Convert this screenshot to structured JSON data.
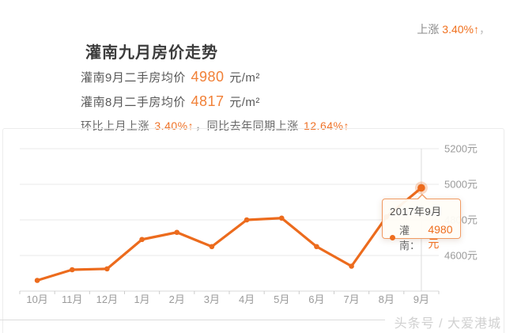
{
  "colors": {
    "accent_line": "#ec6b1d",
    "accent_text": "#f18037",
    "grid": "#e9e9e9",
    "axis": "#d8d8d8",
    "axis_label": "#9b9b9b"
  },
  "top_note": {
    "label": "上涨",
    "value": "3.40%↑",
    "trailing": "，"
  },
  "header": {
    "title": "灌南九月房价走势",
    "current": {
      "label": "灌南9月二手房均价",
      "value": "4980",
      "unit": "元/m²"
    },
    "previous": {
      "label": "灌南8月二手房均价",
      "value": "4817",
      "unit": "元/m²"
    },
    "mom": {
      "label": "环比上月上涨",
      "value": "3.40%↑"
    },
    "separator": "，",
    "yoy": {
      "label": "同比去年同期上涨",
      "value": "12.64%↑"
    }
  },
  "chart_data": {
    "type": "line",
    "categories": [
      "10月",
      "11月",
      "12月",
      "1月",
      "2月",
      "3月",
      "4月",
      "5月",
      "6月",
      "7月",
      "8月",
      "9月"
    ],
    "series": [
      {
        "name": "灌南",
        "color": "#ec6b1d",
        "values": [
          4460,
          4520,
          4525,
          4690,
          4730,
          4650,
          4800,
          4810,
          4650,
          4540,
          4817,
          4980
        ]
      }
    ],
    "yticks": [
      {
        "value": 4600,
        "label": "4600元"
      },
      {
        "value": 4800,
        "label": "4800元"
      },
      {
        "value": 5000,
        "label": "5000元"
      },
      {
        "value": 5200,
        "label": "5200元"
      }
    ],
    "ylim": [
      4400,
      5200
    ],
    "grid": true,
    "legend_position": "none",
    "highlight_index": 11,
    "title": "灌南九月房价走势",
    "xlabel": "",
    "ylabel": ""
  },
  "tooltip": {
    "title": "2017年9月",
    "series_name": "灌南",
    "separator": "：",
    "value": "4980元"
  },
  "watermark": {
    "text": "头条号 / 大爱港城"
  }
}
